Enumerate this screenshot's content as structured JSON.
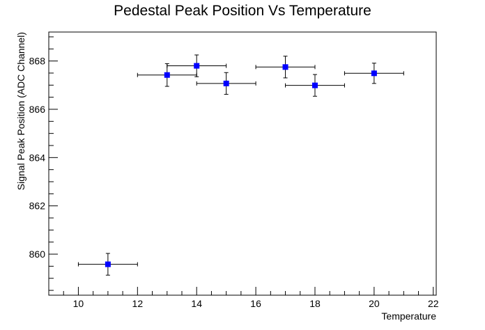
{
  "chart_data": {
    "type": "scatter",
    "title": "Pedestal Peak Position Vs Temperature",
    "xlabel": "Temperature",
    "ylabel": "Signal Peak Position (ADC Channel)",
    "xlim": [
      9,
      22.1
    ],
    "ylim": [
      858.3,
      869.2
    ],
    "x_ticks": [
      10,
      12,
      14,
      16,
      18,
      20,
      22
    ],
    "y_ticks": [
      860,
      862,
      864,
      866,
      868
    ],
    "grid": false,
    "marker_color": "#0000ff",
    "points": [
      {
        "x": 11,
        "y": 859.58,
        "x_err": 1,
        "y_err": 0.45
      },
      {
        "x": 13,
        "y": 867.42,
        "x_err": 1,
        "y_err": 0.47
      },
      {
        "x": 14,
        "y": 867.8,
        "x_err": 1,
        "y_err": 0.45
      },
      {
        "x": 15,
        "y": 867.07,
        "x_err": 1,
        "y_err": 0.45
      },
      {
        "x": 17,
        "y": 867.75,
        "x_err": 1,
        "y_err": 0.45
      },
      {
        "x": 18,
        "y": 866.99,
        "x_err": 1,
        "y_err": 0.45
      },
      {
        "x": 20,
        "y": 867.49,
        "x_err": 1,
        "y_err": 0.42
      }
    ]
  }
}
